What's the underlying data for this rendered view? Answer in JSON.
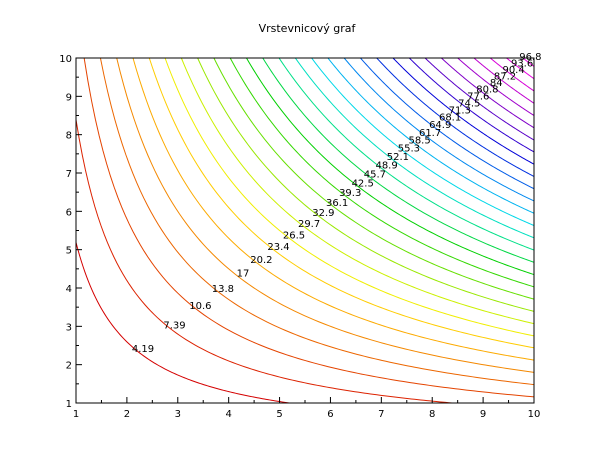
{
  "chart_data": {
    "type": "contour",
    "title": "Vrstevnicový graf",
    "function": "z = x*y - 1",
    "xlim": [
      1,
      10
    ],
    "ylim": [
      1,
      10
    ],
    "x_ticks": [
      "1",
      "2",
      "3",
      "4",
      "5",
      "6",
      "7",
      "8",
      "9",
      "10"
    ],
    "y_ticks": [
      "1",
      "2",
      "3",
      "4",
      "5",
      "6",
      "7",
      "8",
      "9",
      "10"
    ],
    "levels": [
      {
        "value": 4.19,
        "label": "4.19",
        "color": "#d40000"
      },
      {
        "value": 7.39,
        "label": "7.39",
        "color": "#dc2200"
      },
      {
        "value": 10.6,
        "label": "10.6",
        "color": "#e44400"
      },
      {
        "value": 13.8,
        "label": "13.8",
        "color": "#ec6600"
      },
      {
        "value": 17.0,
        "label": "17",
        "color": "#f48800"
      },
      {
        "value": 20.2,
        "label": "20.2",
        "color": "#fcaa00"
      },
      {
        "value": 23.4,
        "label": "23.4",
        "color": "#ffcc00"
      },
      {
        "value": 26.5,
        "label": "26.5",
        "color": "#f0ee00"
      },
      {
        "value": 29.7,
        "label": "29.7",
        "color": "#ccf000"
      },
      {
        "value": 32.9,
        "label": "32.9",
        "color": "#99e800"
      },
      {
        "value": 36.1,
        "label": "36.1",
        "color": "#66e000"
      },
      {
        "value": 39.3,
        "label": "39.3",
        "color": "#33d800"
      },
      {
        "value": 42.5,
        "label": "42.5",
        "color": "#00d000"
      },
      {
        "value": 45.7,
        "label": "45.7",
        "color": "#00d844"
      },
      {
        "value": 48.9,
        "label": "48.9",
        "color": "#00e088"
      },
      {
        "value": 52.1,
        "label": "52.1",
        "color": "#00e0c0"
      },
      {
        "value": 55.3,
        "label": "55.3",
        "color": "#00d8e8"
      },
      {
        "value": 58.5,
        "label": "58.5",
        "color": "#00b4f0"
      },
      {
        "value": 61.7,
        "label": "61.7",
        "color": "#0088f0"
      },
      {
        "value": 64.9,
        "label": "64.9",
        "color": "#005ce8"
      },
      {
        "value": 68.1,
        "label": "68.1",
        "color": "#0030e0"
      },
      {
        "value": 71.3,
        "label": "71.3",
        "color": "#0000d8"
      },
      {
        "value": 74.5,
        "label": "74.5",
        "color": "#3000d0"
      },
      {
        "value": 77.6,
        "label": "77.6",
        "color": "#5a00c8"
      },
      {
        "value": 80.8,
        "label": "80.8",
        "color": "#8000c8"
      },
      {
        "value": 84.0,
        "label": "84",
        "color": "#a000cc"
      },
      {
        "value": 87.2,
        "label": "87.2",
        "color": "#c000d0"
      },
      {
        "value": 90.4,
        "label": "90.4",
        "color": "#d800d8"
      },
      {
        "value": 93.6,
        "label": "93.6",
        "color": "#e800e0"
      },
      {
        "value": 96.8,
        "label": "96.8",
        "color": "#f000e8"
      }
    ]
  }
}
